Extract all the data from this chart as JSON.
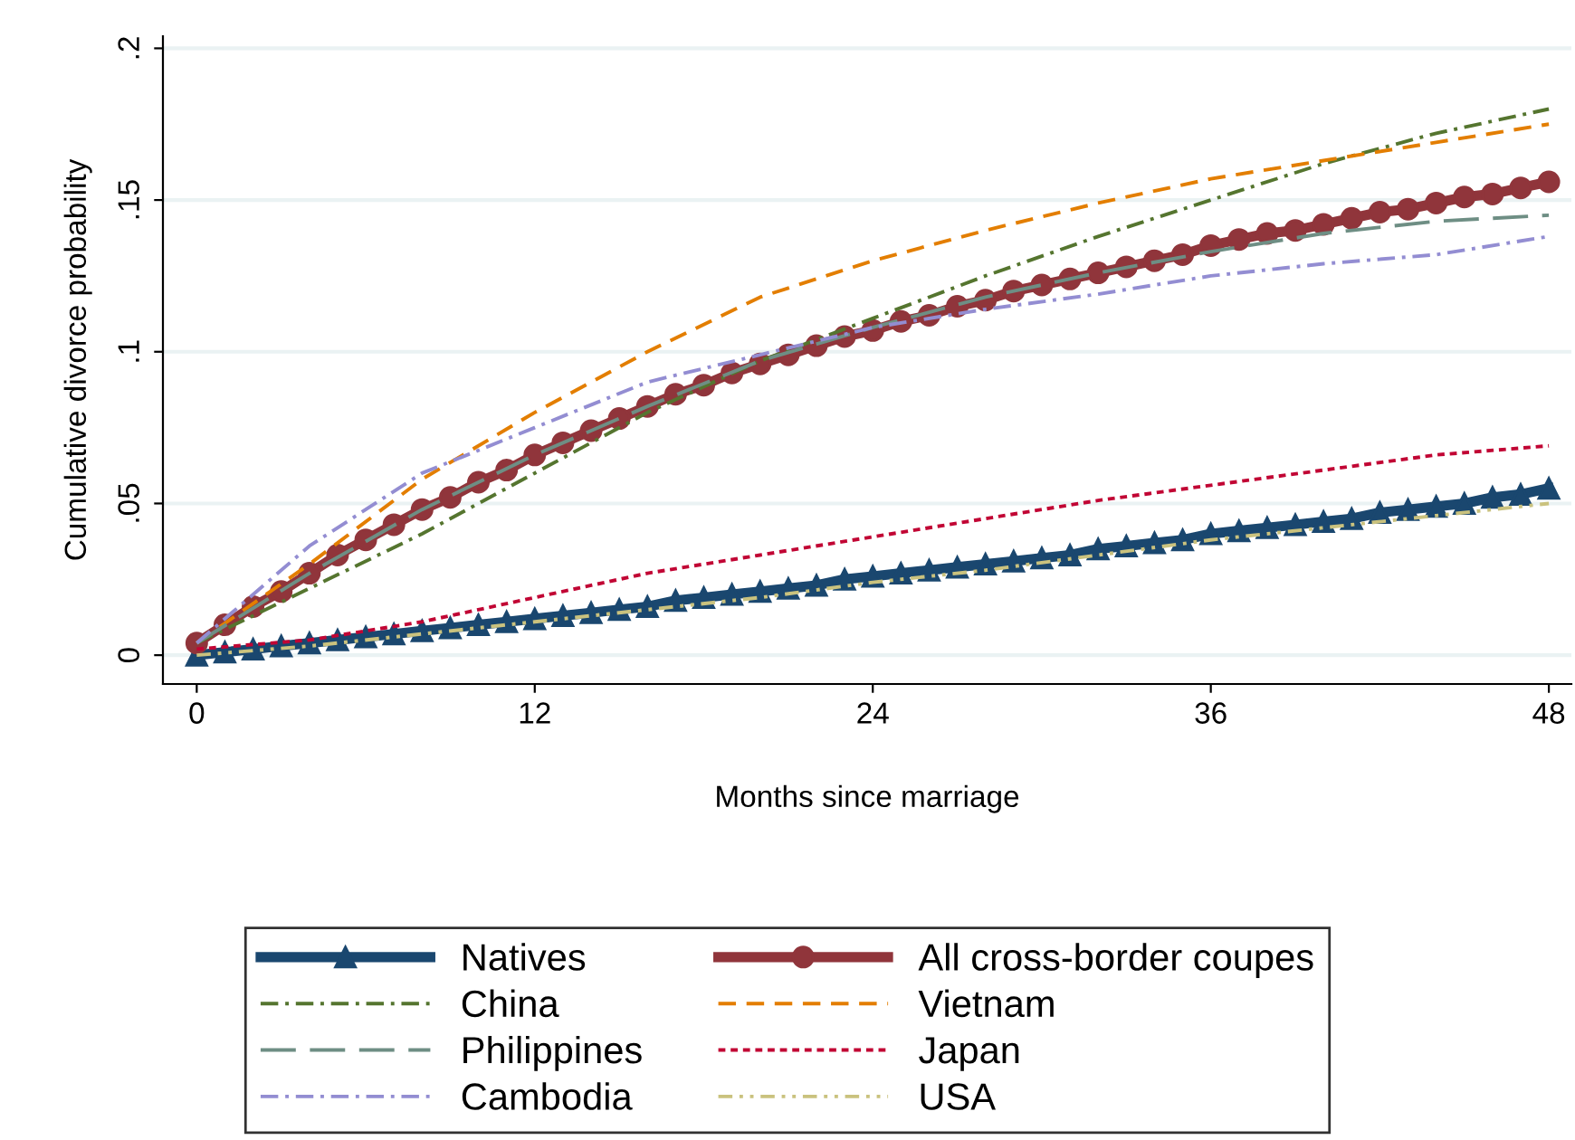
{
  "chart_data": {
    "type": "line",
    "xlabel": "Months since marriage",
    "ylabel": "Cumulative divorce probability",
    "xlim": [
      -1.2,
      48.8
    ],
    "ylim": [
      -0.0095,
      0.204
    ],
    "xticks": [
      0,
      12,
      24,
      36,
      48
    ],
    "yticks": [
      {
        "value": 0,
        "label": "0"
      },
      {
        "value": 0.05,
        "label": ".05"
      },
      {
        "value": 0.1,
        "label": ".1"
      },
      {
        "value": 0.15,
        "label": ".15"
      },
      {
        "value": 0.2,
        "label": ".2"
      }
    ],
    "grid": "y",
    "legend": "bottom",
    "series": [
      {
        "name": "Natives",
        "color": "#1a476f",
        "marker": "triangle",
        "line_style": "solid",
        "x": [
          0,
          1,
          2,
          3,
          4,
          5,
          6,
          7,
          8,
          9,
          10,
          11,
          12,
          13,
          14,
          15,
          16,
          17,
          18,
          19,
          20,
          21,
          22,
          23,
          24,
          25,
          26,
          27,
          28,
          29,
          30,
          31,
          32,
          33,
          34,
          35,
          36,
          37,
          38,
          39,
          40,
          41,
          42,
          43,
          44,
          45,
          46,
          47,
          48
        ],
        "values": [
          0,
          0.001,
          0.002,
          0.003,
          0.004,
          0.005,
          0.006,
          0.007,
          0.008,
          0.009,
          0.01,
          0.011,
          0.012,
          0.013,
          0.014,
          0.015,
          0.016,
          0.018,
          0.019,
          0.02,
          0.021,
          0.022,
          0.023,
          0.025,
          0.026,
          0.027,
          0.028,
          0.029,
          0.03,
          0.031,
          0.032,
          0.033,
          0.035,
          0.036,
          0.037,
          0.038,
          0.04,
          0.041,
          0.042,
          0.043,
          0.044,
          0.045,
          0.047,
          0.048,
          0.049,
          0.05,
          0.052,
          0.053,
          0.055
        ]
      },
      {
        "name": "All cross-border coupes",
        "color": "#90353b",
        "marker": "circle",
        "line_style": "solid",
        "x": [
          0,
          1,
          2,
          3,
          4,
          5,
          6,
          7,
          8,
          9,
          10,
          11,
          12,
          13,
          14,
          15,
          16,
          17,
          18,
          19,
          20,
          21,
          22,
          23,
          24,
          25,
          26,
          27,
          28,
          29,
          30,
          31,
          32,
          33,
          34,
          35,
          36,
          37,
          38,
          39,
          40,
          41,
          42,
          43,
          44,
          45,
          46,
          47,
          48
        ],
        "values": [
          0.004,
          0.01,
          0.016,
          0.021,
          0.027,
          0.033,
          0.038,
          0.043,
          0.048,
          0.052,
          0.057,
          0.061,
          0.066,
          0.07,
          0.074,
          0.078,
          0.082,
          0.086,
          0.089,
          0.093,
          0.096,
          0.099,
          0.102,
          0.105,
          0.107,
          0.11,
          0.112,
          0.115,
          0.117,
          0.12,
          0.122,
          0.124,
          0.126,
          0.128,
          0.13,
          0.132,
          0.135,
          0.137,
          0.139,
          0.14,
          0.142,
          0.144,
          0.146,
          0.147,
          0.149,
          0.151,
          0.152,
          0.154,
          0.156
        ]
      },
      {
        "name": "China",
        "color": "#55752f",
        "marker": "none",
        "line_style": "dashdot",
        "x": [
          0,
          4,
          8,
          12,
          16,
          20,
          24,
          28,
          32,
          36,
          40,
          44,
          48
        ],
        "values": [
          0.004,
          0.022,
          0.04,
          0.06,
          0.08,
          0.097,
          0.111,
          0.125,
          0.138,
          0.15,
          0.162,
          0.172,
          0.18
        ]
      },
      {
        "name": "Vietnam",
        "color": "#e37e00",
        "marker": "none",
        "line_style": "dashed",
        "x": [
          0,
          4,
          8,
          12,
          16,
          20,
          24,
          28,
          32,
          36,
          40,
          44,
          48
        ],
        "values": [
          0.004,
          0.03,
          0.058,
          0.08,
          0.1,
          0.118,
          0.13,
          0.14,
          0.149,
          0.157,
          0.163,
          0.169,
          0.175
        ]
      },
      {
        "name": "Philippines",
        "color": "#6e8e84",
        "marker": "none",
        "line_style": "longdash",
        "x": [
          0,
          4,
          8,
          12,
          16,
          20,
          24,
          28,
          32,
          36,
          40,
          44,
          48
        ],
        "values": [
          0.004,
          0.027,
          0.048,
          0.066,
          0.082,
          0.097,
          0.108,
          0.118,
          0.126,
          0.133,
          0.139,
          0.143,
          0.145
        ]
      },
      {
        "name": "Japan",
        "color": "#c10534",
        "marker": "none",
        "line_style": "dotted",
        "x": [
          0,
          4,
          8,
          12,
          16,
          20,
          24,
          28,
          32,
          36,
          40,
          44,
          48
        ],
        "values": [
          0.002,
          0.005,
          0.011,
          0.019,
          0.027,
          0.033,
          0.039,
          0.045,
          0.051,
          0.056,
          0.061,
          0.066,
          0.069
        ]
      },
      {
        "name": "Cambodia",
        "color": "#938dd2",
        "marker": "none",
        "line_style": "dashdot",
        "x": [
          0,
          4,
          8,
          12,
          16,
          20,
          24,
          28,
          32,
          36,
          40,
          44,
          48
        ],
        "values": [
          0.004,
          0.036,
          0.06,
          0.075,
          0.09,
          0.099,
          0.108,
          0.114,
          0.119,
          0.125,
          0.129,
          0.132,
          0.138
        ]
      },
      {
        "name": "USA",
        "color": "#cac27e",
        "marker": "none",
        "line_style": "dashdotdot",
        "x": [
          0,
          4,
          8,
          12,
          16,
          20,
          24,
          28,
          32,
          36,
          40,
          44,
          48
        ],
        "values": [
          0,
          0.003,
          0.007,
          0.011,
          0.015,
          0.019,
          0.024,
          0.028,
          0.033,
          0.038,
          0.042,
          0.046,
          0.05
        ]
      }
    ]
  }
}
